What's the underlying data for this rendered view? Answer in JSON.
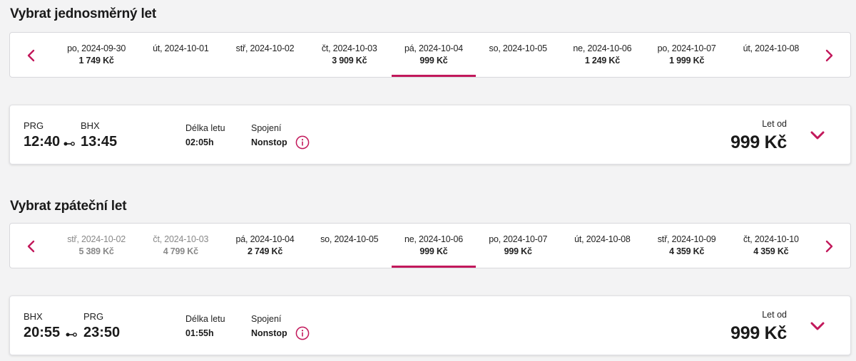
{
  "outbound": {
    "section_title": "Vybrat jednosměrný let",
    "dates": [
      {
        "date": "po, 2024-09-30",
        "price": "1 749 Kč"
      },
      {
        "date": "út, 2024-10-01",
        "price": ""
      },
      {
        "date": "stř, 2024-10-02",
        "price": ""
      },
      {
        "date": "čt, 2024-10-03",
        "price": "3 909 Kč"
      },
      {
        "date": "pá, 2024-10-04",
        "price": "999 Kč"
      },
      {
        "date": "so, 2024-10-05",
        "price": ""
      },
      {
        "date": "ne, 2024-10-06",
        "price": "1 249 Kč"
      },
      {
        "date": "po, 2024-10-07",
        "price": "1 999 Kč"
      },
      {
        "date": "út, 2024-10-08",
        "price": ""
      }
    ],
    "selected_index": 4,
    "flight": {
      "from_code": "PRG",
      "to_code": "BHX",
      "depart_time": "12:40",
      "arrive_time": "13:45",
      "duration_label": "Délka letu",
      "duration_value": "02:05h",
      "connection_label": "Spojení",
      "connection_value": "Nonstop",
      "price_label": "Let od",
      "price": "999 Kč"
    }
  },
  "return": {
    "section_title": "Vybrat zpáteční let",
    "dates": [
      {
        "date": "stř, 2024-10-02",
        "price": "5 389 Kč",
        "muted": true
      },
      {
        "date": "čt, 2024-10-03",
        "price": "4 799 Kč",
        "muted": true
      },
      {
        "date": "pá, 2024-10-04",
        "price": "2 749 Kč"
      },
      {
        "date": "so, 2024-10-05",
        "price": ""
      },
      {
        "date": "ne, 2024-10-06",
        "price": "999 Kč"
      },
      {
        "date": "po, 2024-10-07",
        "price": "999 Kč"
      },
      {
        "date": "út, 2024-10-08",
        "price": ""
      },
      {
        "date": "stř, 2024-10-09",
        "price": "4 359 Kč"
      },
      {
        "date": "čt, 2024-10-10",
        "price": "4 359 Kč"
      }
    ],
    "selected_index": 4,
    "flight": {
      "from_code": "BHX",
      "to_code": "PRG",
      "depart_time": "20:55",
      "arrive_time": "23:50",
      "duration_label": "Délka letu",
      "duration_value": "01:55h",
      "connection_label": "Spojení",
      "connection_value": "Nonstop",
      "price_label": "Let od",
      "price": "999 Kč"
    }
  },
  "icons": {
    "prev": "chevron-left-icon",
    "next": "chevron-right-icon",
    "info": "info-circle-icon",
    "expand": "chevron-down-icon",
    "connector": "route-connector-icon"
  },
  "colors": {
    "accent": "#c2185b",
    "text": "#1a1a1a",
    "muted_text": "#888888",
    "background": "#f3f3f4",
    "card": "#ffffff"
  }
}
